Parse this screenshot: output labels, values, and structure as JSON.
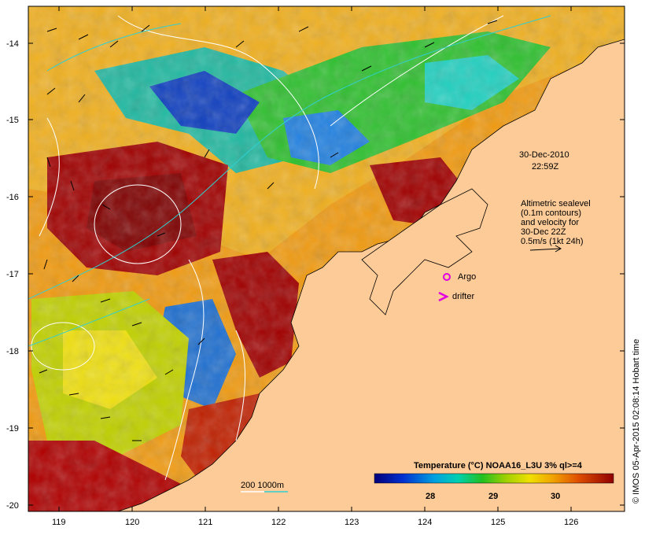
{
  "map": {
    "date": "30-Dec-2010",
    "time": "22:59Z",
    "altimetry_note": [
      "Altimetric sealevel",
      "(0.1m contours)",
      "and velocity for",
      "30-Dec 22Z",
      "0.5m/s (1kt 24h)"
    ],
    "argo_label": "Argo",
    "drifter_label": "drifter",
    "isobath_label": "200  1000m",
    "colorbar_title": "Temperature (°C) NOAA16_L3U 3% ql>=4",
    "colorbar_ticks": [
      "28",
      "29",
      "30"
    ],
    "x_ticks": [
      "119",
      "120",
      "121",
      "122",
      "123",
      "124",
      "125",
      "126"
    ],
    "y_ticks": [
      "-14",
      "-15",
      "-16",
      "-17",
      "-18",
      "-19",
      "-20"
    ],
    "credit": "© IMOS 05-Apr-2015 02:08:14 Hobart time",
    "colors": {
      "land": "#fdcb98",
      "hot": "#a00000",
      "cool": "#1010a0",
      "argo": "#e000e0"
    }
  }
}
